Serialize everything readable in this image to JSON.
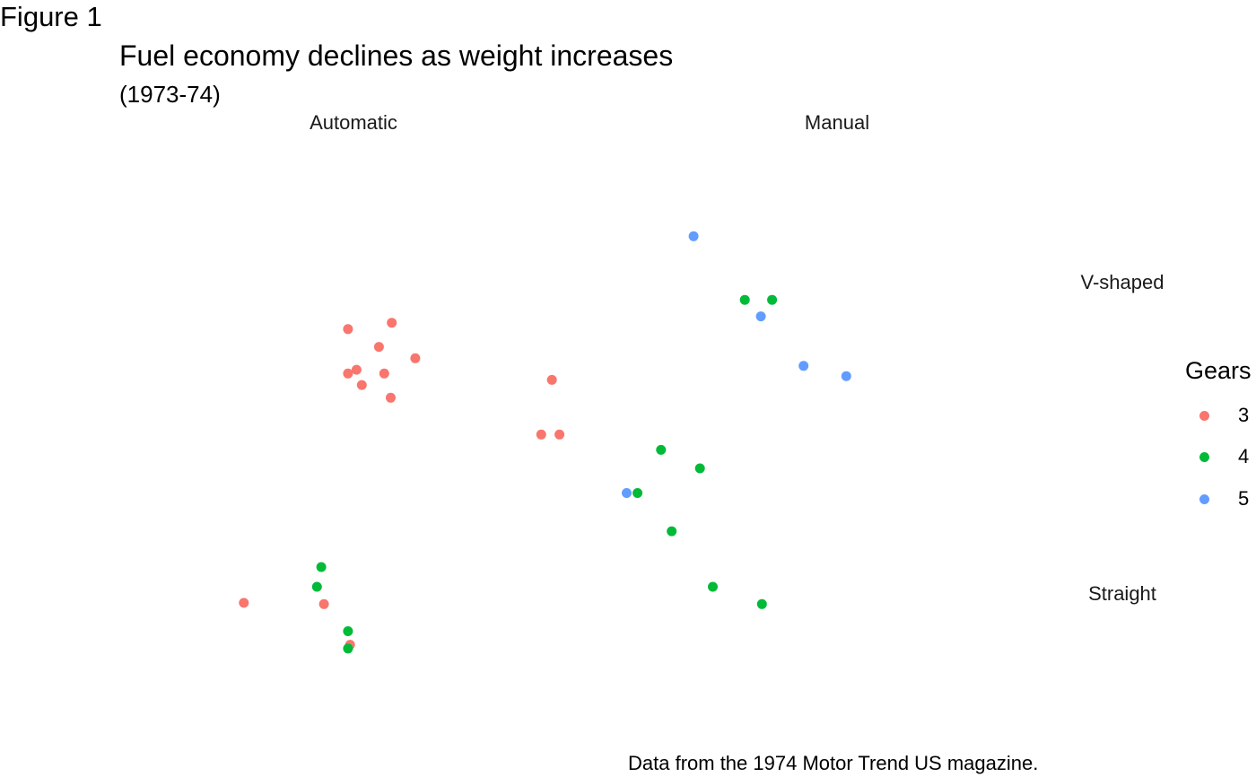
{
  "figure": {
    "tag": "Figure 1",
    "caption": "Data from the 1974 Motor Trend US magazine."
  },
  "chart_data": {
    "type": "scatter",
    "title": "Fuel economy declines as weight increases",
    "subtitle": "(1973-74)",
    "xlabel": "",
    "ylabel": "",
    "facets": {
      "columns": [
        "Automatic",
        "Manual"
      ],
      "rows": [
        "V-shaped",
        "Straight"
      ]
    },
    "xlim": [
      1.4,
      5.6
    ],
    "ylim": [
      10,
      34
    ],
    "grid": false,
    "axes_visible": false,
    "legend": {
      "title": "Gears",
      "position": "right",
      "entries": [
        {
          "label": "3",
          "color": "#F8766D"
        },
        {
          "label": "4",
          "color": "#00BA38"
        },
        {
          "label": "5",
          "color": "#619CFF"
        }
      ]
    },
    "series": [
      {
        "name": "3",
        "color": "#F8766D",
        "points": [
          {
            "facet_col": "Automatic",
            "facet_row": "V-shaped",
            "x": 3.44,
            "y": 18.7
          },
          {
            "facet_col": "Automatic",
            "facet_row": "V-shaped",
            "x": 3.57,
            "y": 14.3
          },
          {
            "facet_col": "Automatic",
            "facet_row": "V-shaped",
            "x": 4.07,
            "y": 16.4
          },
          {
            "facet_col": "Automatic",
            "facet_row": "V-shaped",
            "x": 3.73,
            "y": 17.3
          },
          {
            "facet_col": "Automatic",
            "facet_row": "V-shaped",
            "x": 3.78,
            "y": 15.2
          },
          {
            "facet_col": "Automatic",
            "facet_row": "V-shaped",
            "x": 5.25,
            "y": 10.4
          },
          {
            "facet_col": "Automatic",
            "facet_row": "V-shaped",
            "x": 5.42,
            "y": 10.4
          },
          {
            "facet_col": "Automatic",
            "facet_row": "V-shaped",
            "x": 5.35,
            "y": 14.7
          },
          {
            "facet_col": "Automatic",
            "facet_row": "V-shaped",
            "x": 3.52,
            "y": 15.5
          },
          {
            "facet_col": "Automatic",
            "facet_row": "V-shaped",
            "x": 3.44,
            "y": 15.2
          },
          {
            "facet_col": "Automatic",
            "facet_row": "V-shaped",
            "x": 3.84,
            "y": 13.3
          },
          {
            "facet_col": "Automatic",
            "facet_row": "V-shaped",
            "x": 3.85,
            "y": 19.2
          },
          {
            "facet_col": "Automatic",
            "facet_row": "Straight",
            "x": 3.215,
            "y": 21.4
          },
          {
            "facet_col": "Automatic",
            "facet_row": "Straight",
            "x": 3.46,
            "y": 18.1
          },
          {
            "facet_col": "Automatic",
            "facet_row": "Straight",
            "x": 2.465,
            "y": 21.5
          }
        ]
      },
      {
        "name": "4",
        "color": "#00BA38",
        "points": [
          {
            "facet_col": "Automatic",
            "facet_row": "Straight",
            "x": 3.19,
            "y": 24.4
          },
          {
            "facet_col": "Automatic",
            "facet_row": "Straight",
            "x": 3.15,
            "y": 22.8
          },
          {
            "facet_col": "Automatic",
            "facet_row": "Straight",
            "x": 3.44,
            "y": 19.2
          },
          {
            "facet_col": "Automatic",
            "facet_row": "Straight",
            "x": 3.44,
            "y": 17.8
          },
          {
            "facet_col": "Manual",
            "facet_row": "V-shaped",
            "x": 2.62,
            "y": 21.0
          },
          {
            "facet_col": "Manual",
            "facet_row": "V-shaped",
            "x": 2.875,
            "y": 21.0
          },
          {
            "facet_col": "Manual",
            "facet_row": "Straight",
            "x": 2.32,
            "y": 22.8
          },
          {
            "facet_col": "Manual",
            "facet_row": "Straight",
            "x": 2.2,
            "y": 32.4
          },
          {
            "facet_col": "Manual",
            "facet_row": "Straight",
            "x": 1.615,
            "y": 30.4
          },
          {
            "facet_col": "Manual",
            "facet_row": "Straight",
            "x": 1.835,
            "y": 33.9
          },
          {
            "facet_col": "Manual",
            "facet_row": "Straight",
            "x": 1.935,
            "y": 27.3
          },
          {
            "facet_col": "Manual",
            "facet_row": "Straight",
            "x": 2.78,
            "y": 21.4
          }
        ]
      },
      {
        "name": "5",
        "color": "#619CFF",
        "points": [
          {
            "facet_col": "Manual",
            "facet_row": "V-shaped",
            "x": 2.14,
            "y": 26.0
          },
          {
            "facet_col": "Manual",
            "facet_row": "V-shaped",
            "x": 3.17,
            "y": 15.8
          },
          {
            "facet_col": "Manual",
            "facet_row": "V-shaped",
            "x": 2.77,
            "y": 19.7
          },
          {
            "facet_col": "Manual",
            "facet_row": "V-shaped",
            "x": 3.57,
            "y": 15.0
          },
          {
            "facet_col": "Manual",
            "facet_row": "Straight",
            "x": 1.513,
            "y": 30.4
          }
        ]
      }
    ]
  }
}
